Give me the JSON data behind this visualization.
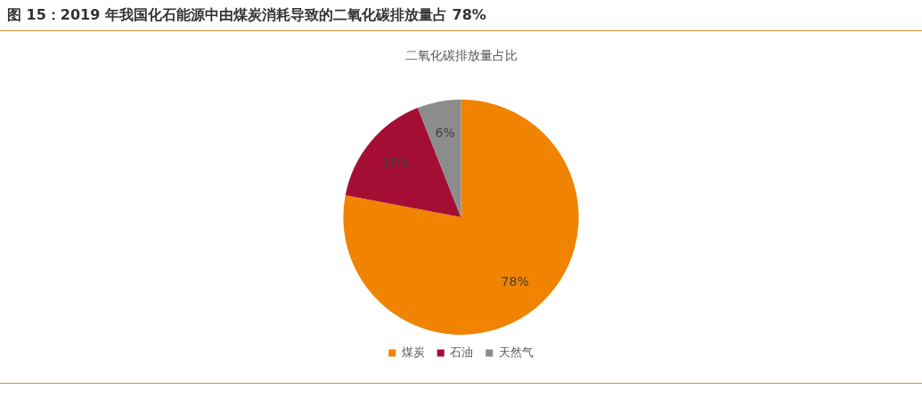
{
  "chart_data": {
    "type": "pie",
    "title": "图 15：2019 年我国化石能源中由煤炭消耗导致的二氧化碳排放量占 78%",
    "subtitle": "二氧化碳排放量占比",
    "categories": [
      "煤炭",
      "石油",
      "天然气"
    ],
    "values": [
      78,
      16,
      6
    ],
    "colors": [
      "#f08300",
      "#a50e34",
      "#8c8c8c"
    ],
    "value_labels": [
      "78%",
      "16%",
      "6%"
    ],
    "legend": "bottom"
  }
}
